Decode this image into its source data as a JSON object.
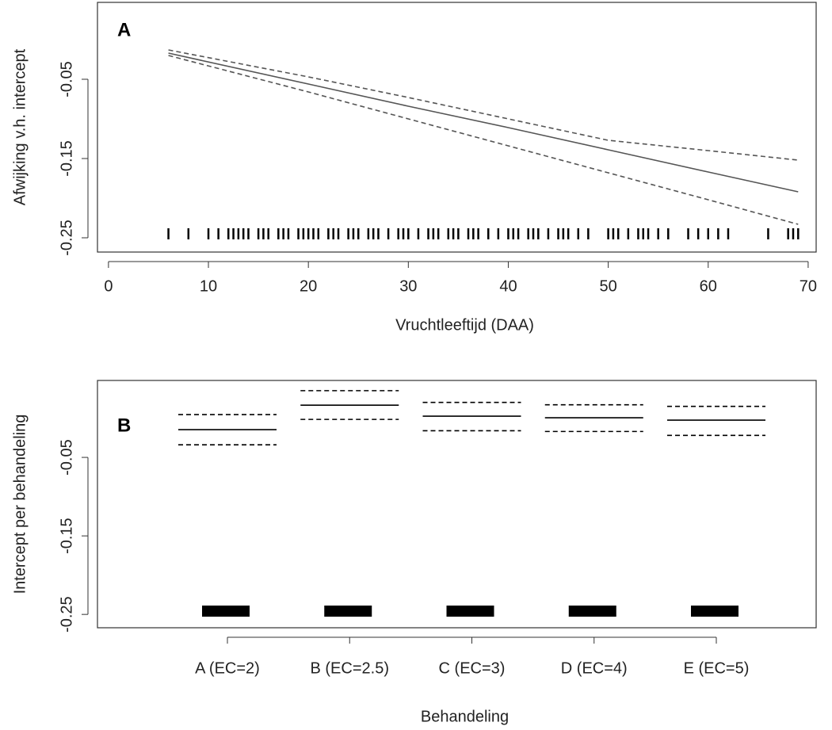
{
  "chart_data": [
    {
      "type": "line",
      "panel_label": "A",
      "x_label": "Vruchtleeftijd (DAA)",
      "y_label": "Afwijking v.h. intercept",
      "xlim": [
        -1.1,
        70.8
      ],
      "ylim": [
        -0.268,
        0.047
      ],
      "xticks": [
        0,
        10,
        20,
        30,
        40,
        50,
        60,
        70
      ],
      "yticks": [
        -0.25,
        -0.15,
        -0.05
      ],
      "x": [
        6,
        20,
        30,
        40,
        50,
        60,
        69
      ],
      "series": [
        {
          "style": "solid",
          "color": "#555555",
          "values": [
            -0.017,
            -0.056,
            -0.084,
            -0.111,
            -0.139,
            -0.167,
            -0.192
          ]
        },
        {
          "style": "dashed",
          "color": "#555555",
          "values": [
            -0.013,
            -0.047,
            -0.073,
            -0.1,
            -0.127,
            -0.14,
            -0.152
          ]
        },
        {
          "style": "dashed",
          "color": "#555555",
          "values": [
            -0.02,
            -0.066,
            -0.1,
            -0.134,
            -0.168,
            -0.202,
            -0.233
          ]
        }
      ],
      "rug": [
        6,
        8,
        10,
        11,
        12,
        12.5,
        13,
        13.5,
        14,
        15,
        15.5,
        16,
        17,
        17.5,
        18,
        19,
        19.5,
        20,
        20.5,
        21,
        22,
        22.5,
        23,
        24,
        24.5,
        25,
        26,
        26.5,
        27,
        28,
        29,
        29.5,
        30,
        31,
        32,
        32.5,
        33,
        34,
        34.5,
        35,
        36,
        36.5,
        37,
        38,
        39,
        40,
        40.5,
        41,
        42,
        42.5,
        43,
        44,
        45,
        45.5,
        46,
        47,
        48,
        50,
        50.5,
        51,
        52,
        53,
        53.5,
        54,
        55,
        56,
        58,
        59,
        60,
        61,
        62,
        66,
        68,
        68.5,
        69
      ]
    },
    {
      "type": "interval",
      "panel_label": "B",
      "x_label": "Behandeling",
      "y_label": "Intercept per behandeling",
      "ylim": [
        -0.267,
        0.048
      ],
      "yticks": [
        -0.25,
        -0.15,
        -0.05
      ],
      "categories": [
        "A (EC=2)",
        "B (EC=2.5)",
        "C (EC=3)",
        "D (EC=4)",
        "E (EC=5)"
      ],
      "series": [
        {
          "style": "solid",
          "color": "#000000",
          "values": [
            -0.0147,
            0.0165,
            0.0025,
            0.0005,
            -0.0025
          ]
        },
        {
          "style": "dashed",
          "color": "#000000",
          "values": [
            0.0045,
            0.035,
            0.02,
            0.017,
            0.015
          ]
        },
        {
          "style": "dashed",
          "color": "#000000",
          "values": [
            -0.034,
            -0.0016,
            -0.016,
            -0.017,
            -0.022
          ]
        }
      ]
    }
  ]
}
